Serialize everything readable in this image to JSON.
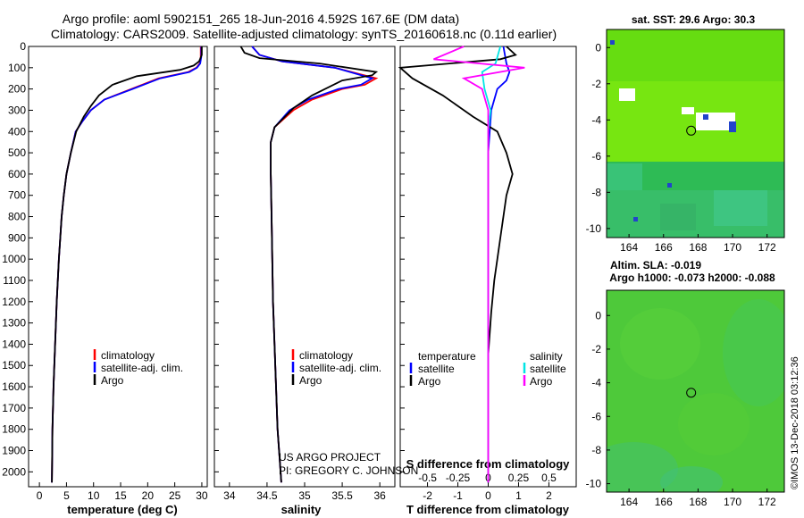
{
  "header": {
    "line1": "Argo profile: aoml 5902151_265 18-Jun-2016 4.592S 167.6E (DM data)",
    "line2": "Climatology: CARS2009. Satellite-adjusted climatology: synTS_20160618.nc (0.11d earlier)"
  },
  "credits": {
    "project": "US ARGO PROJECT",
    "pi": "PI: GREGORY C. JOHNSON",
    "stamp": "©IMOS 13-Dec-2018 03:12:36"
  },
  "colors": {
    "climatology": "#ff0000",
    "satellite": "#0000ff",
    "argo": "#000000",
    "sal_satellite": "#00e5e5",
    "sal_argo": "#ff00ff"
  },
  "chart_data": [
    {
      "type": "line",
      "id": "temperature",
      "xlabel": "temperature (deg C)",
      "ylabel": "",
      "xlim": [
        -2,
        31
      ],
      "ylim": [
        2070,
        0
      ],
      "xticks": [
        0,
        5,
        10,
        15,
        20,
        25,
        30
      ],
      "yticks": [
        0,
        100,
        200,
        300,
        400,
        500,
        600,
        700,
        800,
        900,
        1000,
        1100,
        1200,
        1300,
        1400,
        1500,
        1600,
        1700,
        1800,
        1900,
        2000
      ],
      "legend": [
        "climatology",
        "satellite-adj. clim.",
        "Argo"
      ],
      "series": [
        {
          "name": "climatology",
          "x": [
            29.8,
            29.8,
            29.6,
            29.0,
            27.5,
            22.0,
            17.0,
            12.0,
            9.5,
            8.0,
            6.7,
            5.8,
            5.0,
            4.5,
            4.1,
            3.6,
            3.2,
            2.9,
            2.6,
            2.4,
            2.3
          ],
          "y": [
            0,
            50,
            80,
            100,
            120,
            150,
            200,
            250,
            300,
            350,
            400,
            500,
            600,
            700,
            800,
            1000,
            1200,
            1400,
            1600,
            1800,
            2050
          ]
        },
        {
          "name": "satellite-adj. clim.",
          "x": [
            29.9,
            29.9,
            29.7,
            29.1,
            27.7,
            22.3,
            17.2,
            12.0,
            9.5,
            8.0,
            6.7,
            5.8,
            5.0,
            4.5,
            4.1,
            3.6,
            3.2,
            2.9,
            2.6,
            2.4,
            2.3
          ],
          "y": [
            0,
            50,
            80,
            100,
            120,
            150,
            200,
            250,
            300,
            350,
            400,
            500,
            600,
            700,
            800,
            1000,
            1200,
            1400,
            1600,
            1800,
            2050
          ]
        },
        {
          "name": "Argo",
          "x": [
            30.0,
            30.0,
            29.5,
            28.5,
            26.0,
            18.0,
            13.5,
            11.0,
            9.5,
            8.2,
            6.8,
            5.8,
            5.0,
            4.5,
            4.1,
            3.6,
            3.2,
            2.9,
            2.6,
            2.4,
            2.3
          ],
          "y": [
            0,
            40,
            70,
            90,
            110,
            140,
            180,
            230,
            280,
            330,
            400,
            500,
            600,
            700,
            800,
            1000,
            1200,
            1400,
            1600,
            1800,
            2050
          ]
        }
      ]
    },
    {
      "type": "line",
      "id": "salinity",
      "xlabel": "salinity",
      "xlim": [
        33.8,
        36.2
      ],
      "ylim": [
        2070,
        0
      ],
      "xticks": [
        34,
        34.5,
        35,
        35.5,
        36
      ],
      "legend": [
        "climatology",
        "satellite-adj. clim.",
        "Argo"
      ],
      "series": [
        {
          "name": "climatology",
          "x": [
            34.3,
            34.4,
            34.7,
            35.4,
            35.95,
            35.8,
            35.5,
            35.1,
            34.85,
            34.6,
            34.55,
            34.55,
            34.56,
            34.57,
            34.58,
            34.6,
            34.62,
            34.64,
            34.66,
            34.68,
            34.69
          ],
          "y": [
            0,
            40,
            70,
            100,
            150,
            180,
            200,
            250,
            300,
            380,
            450,
            600,
            800,
            1000,
            1200,
            1400,
            1600,
            1800,
            1900,
            2000,
            2050
          ]
        },
        {
          "name": "satellite-adj. clim.",
          "x": [
            34.3,
            34.4,
            34.7,
            35.4,
            35.9,
            35.75,
            35.45,
            35.05,
            34.8,
            34.6,
            34.55,
            34.55,
            34.56,
            34.57,
            34.58,
            34.6,
            34.62,
            34.64,
            34.66,
            34.68,
            34.69
          ],
          "y": [
            0,
            40,
            70,
            100,
            150,
            180,
            200,
            250,
            300,
            380,
            450,
            600,
            800,
            1000,
            1200,
            1400,
            1600,
            1800,
            1900,
            2000,
            2050
          ]
        },
        {
          "name": "Argo",
          "x": [
            34.15,
            34.2,
            34.4,
            35.2,
            35.95,
            35.9,
            35.5,
            35.1,
            34.85,
            34.6,
            34.55,
            34.55,
            34.56,
            34.57,
            34.58,
            34.6,
            34.62,
            34.64,
            34.66,
            34.68,
            34.69
          ],
          "y": [
            0,
            30,
            55,
            80,
            120,
            135,
            160,
            230,
            290,
            380,
            450,
            600,
            800,
            1000,
            1200,
            1400,
            1600,
            1800,
            1900,
            2000,
            2050
          ]
        }
      ]
    },
    {
      "type": "line",
      "id": "difference",
      "xlabel": "T difference from climatology",
      "xlabel_top": "S difference from climatology",
      "xlim": [
        -2.9,
        2.9
      ],
      "ylim": [
        2070,
        0
      ],
      "xticks": [
        -2,
        -1,
        0,
        1,
        2
      ],
      "sticks": [
        -0.5,
        -0.25,
        0,
        0.25,
        0.5
      ],
      "s_scale": 4,
      "legend_left_title": "temperature",
      "legend_right_title": "salinity",
      "legend_left": [
        "satellite",
        "Argo"
      ],
      "legend_right": [
        "satellite",
        "Argo"
      ],
      "series": [
        {
          "name": "T satellite",
          "x": [
            0.5,
            0.6,
            0.7,
            0.6,
            0.3,
            0.1,
            0.05,
            0.0,
            0.0,
            0.0,
            0.0,
            0.0,
            0.0
          ],
          "y": [
            0,
            80,
            120,
            160,
            200,
            300,
            400,
            500,
            800,
            1000,
            1500,
            1800,
            2050
          ]
        },
        {
          "name": "T Argo",
          "x": [
            0.6,
            0.9,
            0.4,
            -3.0,
            -2.5,
            -1.5,
            -0.5,
            0.3,
            0.6,
            0.8,
            0.6,
            0.5,
            0.4,
            0.3,
            0.2,
            0.1,
            0.0,
            0.0,
            0.0
          ],
          "y": [
            0,
            40,
            60,
            100,
            150,
            230,
            330,
            400,
            500,
            600,
            700,
            800,
            900,
            1000,
            1100,
            1250,
            1450,
            1800,
            2050
          ]
        },
        {
          "name": "S satellite",
          "x": [
            0.1,
            0.06,
            -0.05,
            -0.03,
            0.02,
            0.0,
            0.0,
            0.0,
            0.0,
            0.0
          ],
          "y": [
            0,
            80,
            120,
            200,
            300,
            400,
            600,
            1000,
            1500,
            2050
          ]
        },
        {
          "name": "S Argo",
          "x": [
            -0.2,
            -0.45,
            0.3,
            -0.2,
            -0.05,
            0.0,
            0.0,
            0.0,
            0.0
          ],
          "y": [
            0,
            60,
            100,
            150,
            200,
            300,
            400,
            1000,
            2050
          ]
        }
      ]
    },
    {
      "type": "heatmap",
      "id": "sst_map",
      "title": "sat. SST: 29.6 Argo: 30.3",
      "xlim": [
        162.7,
        173.0
      ],
      "ylim": [
        -10.5,
        1.0
      ],
      "xticks": [
        164,
        166,
        168,
        170,
        172
      ],
      "yticks": [
        0,
        -2,
        -4,
        -6,
        -8,
        -10
      ],
      "marker": {
        "lon": 167.6,
        "lat": -4.592
      }
    },
    {
      "type": "heatmap",
      "id": "sla_map",
      "title": "Altim. SLA: -0.019",
      "subtitle": "Argo h1000: -0.073 h2000: -0.088",
      "xlim": [
        162.7,
        173.0
      ],
      "ylim": [
        -10.5,
        1.5
      ],
      "xticks": [
        164,
        166,
        168,
        170,
        172
      ],
      "yticks": [
        0,
        -2,
        -4,
        -6,
        -8,
        -10
      ],
      "marker": {
        "lon": 167.6,
        "lat": -4.592
      }
    }
  ]
}
